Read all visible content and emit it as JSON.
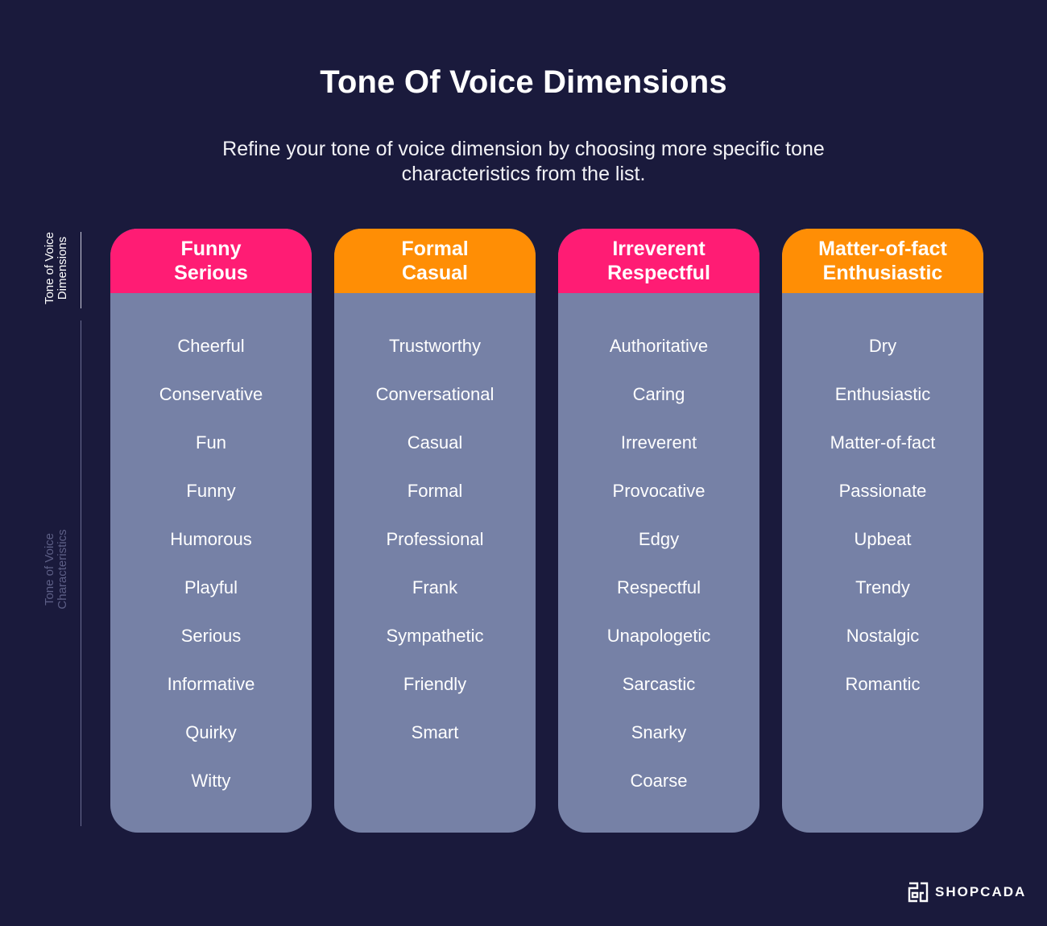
{
  "title": "Tone Of Voice Dimensions",
  "subtitle": "Refine your tone of voice dimension by choosing more specific tone characteristics from the list.",
  "side_labels": {
    "dimensions": "Tone of Voice\nDimensions",
    "characteristics": "Tone of Voice\nCharacteristics"
  },
  "columns": [
    {
      "header": "Funny\nSerious",
      "items": [
        "Cheerful",
        "Conservative",
        "Fun",
        "Funny",
        "Humorous",
        "Playful",
        "Serious",
        "Informative",
        "Quirky",
        "Witty"
      ]
    },
    {
      "header": "Formal\nCasual",
      "items": [
        "Trustworthy",
        "Conversational",
        "Casual",
        "Formal",
        "Professional",
        "Frank",
        "Sympathetic",
        "Friendly",
        "Smart",
        ""
      ]
    },
    {
      "header": "Irreverent\nRespectful",
      "items": [
        "Authoritative",
        "Caring",
        "Irreverent",
        "Provocative",
        "Edgy",
        "Respectful",
        "Unapologetic",
        "Sarcastic",
        "Snarky",
        "Coarse"
      ]
    },
    {
      "header": "Matter-of-fact\nEnthusiastic",
      "items": [
        "Dry",
        "Enthusiastic",
        "Matter-of-fact",
        "Passionate",
        "Upbeat",
        "Trendy",
        "Nostalgic",
        "Romantic",
        "",
        ""
      ]
    }
  ],
  "colors": {
    "background": "#1a1a3c",
    "pink": "#ff1c74",
    "orange": "#ff8e05",
    "column": "#7681a6"
  },
  "logo": {
    "text": "SHOPCADA",
    "icon": "shopcada-logo-icon"
  }
}
